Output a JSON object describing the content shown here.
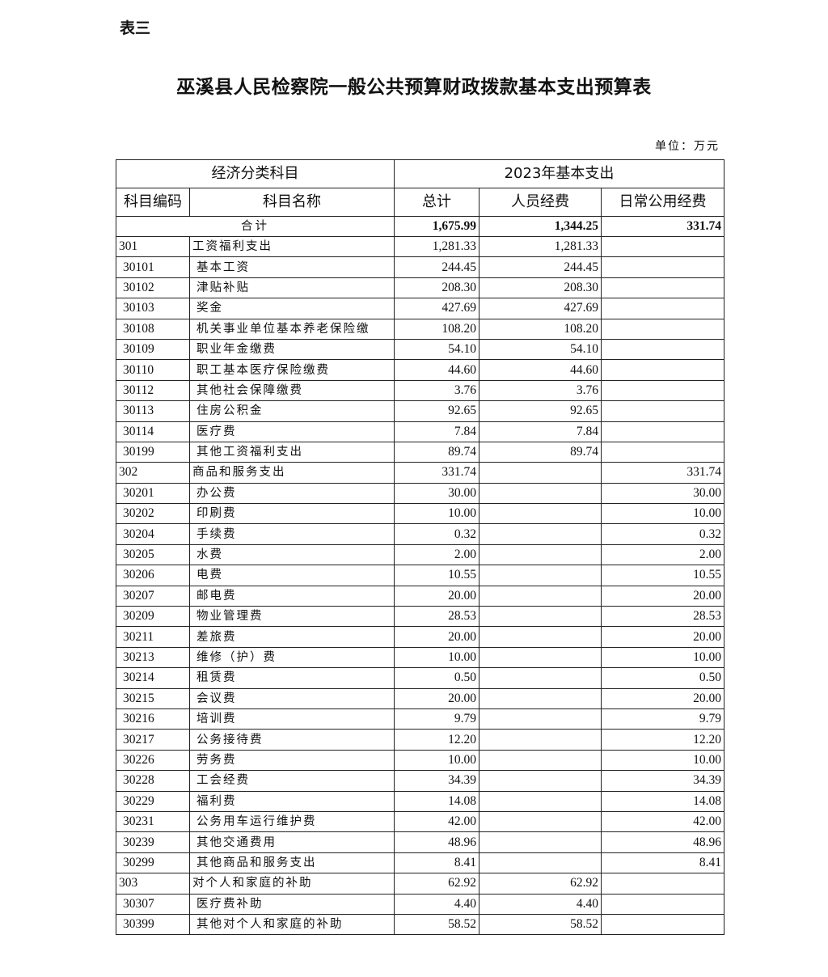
{
  "label": "表三",
  "title": "巫溪县人民检察院一般公共预算财政拨款基本支出预算表",
  "unit": "单位：万元",
  "header": {
    "group1": "经济分类科目",
    "group2": "2023年基本支出",
    "code": "科目编码",
    "name": "科目名称",
    "total": "总计",
    "personnel": "人员经费",
    "public": "日常公用经费"
  },
  "total_row": {
    "label": "合计",
    "total": "1,675.99",
    "personnel": "1,344.25",
    "public": "331.74"
  },
  "rows": [
    {
      "code": "301",
      "name": "工资福利支出",
      "total": "1,281.33",
      "personnel": "1,281.33",
      "public": "",
      "level": 1
    },
    {
      "code": "30101",
      "name": "基本工资",
      "total": "244.45",
      "personnel": "244.45",
      "public": "",
      "level": 2
    },
    {
      "code": "30102",
      "name": "津贴补贴",
      "total": "208.30",
      "personnel": "208.30",
      "public": "",
      "level": 2
    },
    {
      "code": "30103",
      "name": "奖金",
      "total": "427.69",
      "personnel": "427.69",
      "public": "",
      "level": 2
    },
    {
      "code": "30108",
      "name": "机关事业单位基本养老保险缴",
      "total": "108.20",
      "personnel": "108.20",
      "public": "",
      "level": 2
    },
    {
      "code": "30109",
      "name": "职业年金缴费",
      "total": "54.10",
      "personnel": "54.10",
      "public": "",
      "level": 2
    },
    {
      "code": "30110",
      "name": "职工基本医疗保险缴费",
      "total": "44.60",
      "personnel": "44.60",
      "public": "",
      "level": 2
    },
    {
      "code": "30112",
      "name": "其他社会保障缴费",
      "total": "3.76",
      "personnel": "3.76",
      "public": "",
      "level": 2
    },
    {
      "code": "30113",
      "name": "住房公积金",
      "total": "92.65",
      "personnel": "92.65",
      "public": "",
      "level": 2
    },
    {
      "code": "30114",
      "name": "医疗费",
      "total": "7.84",
      "personnel": "7.84",
      "public": "",
      "level": 2
    },
    {
      "code": "30199",
      "name": "其他工资福利支出",
      "total": "89.74",
      "personnel": "89.74",
      "public": "",
      "level": 2
    },
    {
      "code": "302",
      "name": "商品和服务支出",
      "total": "331.74",
      "personnel": "",
      "public": "331.74",
      "level": 1
    },
    {
      "code": "30201",
      "name": "办公费",
      "total": "30.00",
      "personnel": "",
      "public": "30.00",
      "level": 2
    },
    {
      "code": "30202",
      "name": "印刷费",
      "total": "10.00",
      "personnel": "",
      "public": "10.00",
      "level": 2
    },
    {
      "code": "30204",
      "name": "手续费",
      "total": "0.32",
      "personnel": "",
      "public": "0.32",
      "level": 2
    },
    {
      "code": "30205",
      "name": "水费",
      "total": "2.00",
      "personnel": "",
      "public": "2.00",
      "level": 2
    },
    {
      "code": "30206",
      "name": "电费",
      "total": "10.55",
      "personnel": "",
      "public": "10.55",
      "level": 2
    },
    {
      "code": "30207",
      "name": "邮电费",
      "total": "20.00",
      "personnel": "",
      "public": "20.00",
      "level": 2
    },
    {
      "code": "30209",
      "name": "物业管理费",
      "total": "28.53",
      "personnel": "",
      "public": "28.53",
      "level": 2
    },
    {
      "code": "30211",
      "name": "差旅费",
      "total": "20.00",
      "personnel": "",
      "public": "20.00",
      "level": 2
    },
    {
      "code": "30213",
      "name": "维修（护）费",
      "total": "10.00",
      "personnel": "",
      "public": "10.00",
      "level": 2
    },
    {
      "code": "30214",
      "name": "租赁费",
      "total": "0.50",
      "personnel": "",
      "public": "0.50",
      "level": 2
    },
    {
      "code": "30215",
      "name": "会议费",
      "total": "20.00",
      "personnel": "",
      "public": "20.00",
      "level": 2
    },
    {
      "code": "30216",
      "name": "培训费",
      "total": "9.79",
      "personnel": "",
      "public": "9.79",
      "level": 2
    },
    {
      "code": "30217",
      "name": "公务接待费",
      "total": "12.20",
      "personnel": "",
      "public": "12.20",
      "level": 2
    },
    {
      "code": "30226",
      "name": "劳务费",
      "total": "10.00",
      "personnel": "",
      "public": "10.00",
      "level": 2
    },
    {
      "code": "30228",
      "name": "工会经费",
      "total": "34.39",
      "personnel": "",
      "public": "34.39",
      "level": 2
    },
    {
      "code": "30229",
      "name": "福利费",
      "total": "14.08",
      "personnel": "",
      "public": "14.08",
      "level": 2
    },
    {
      "code": "30231",
      "name": "公务用车运行维护费",
      "total": "42.00",
      "personnel": "",
      "public": "42.00",
      "level": 2
    },
    {
      "code": "30239",
      "name": "其他交通费用",
      "total": "48.96",
      "personnel": "",
      "public": "48.96",
      "level": 2
    },
    {
      "code": "30299",
      "name": "其他商品和服务支出",
      "total": "8.41",
      "personnel": "",
      "public": "8.41",
      "level": 2
    },
    {
      "code": "303",
      "name": "对个人和家庭的补助",
      "total": "62.92",
      "personnel": "62.92",
      "public": "",
      "level": 1
    },
    {
      "code": "30307",
      "name": "医疗费补助",
      "total": "4.40",
      "personnel": "4.40",
      "public": "",
      "level": 2
    },
    {
      "code": "30399",
      "name": "其他对个人和家庭的补助",
      "total": "58.52",
      "personnel": "58.52",
      "public": "",
      "level": 2
    }
  ]
}
